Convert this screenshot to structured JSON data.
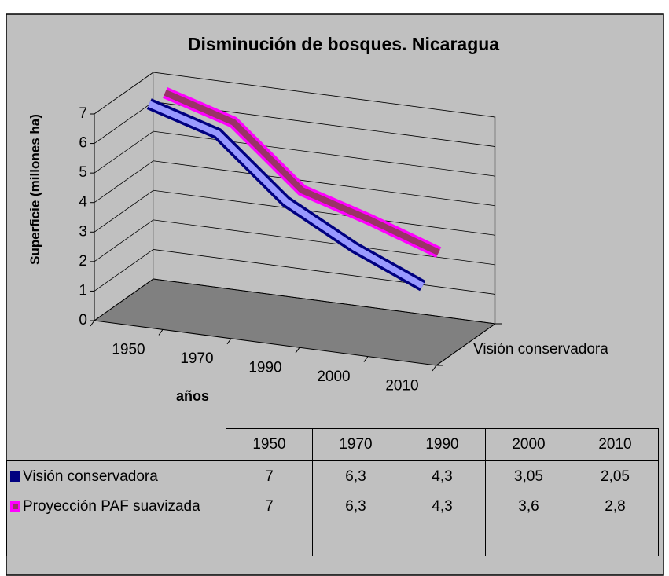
{
  "chart_data": {
    "type": "line3d",
    "title": "Disminución de bosques. Nicaragua",
    "x_label": "años",
    "y_label": "Superficie (millones ha)",
    "depth_label": "Visión conservadora",
    "categories": [
      "1950",
      "1970",
      "1990",
      "2000",
      "2010"
    ],
    "ylim": [
      0,
      7
    ],
    "yticks": [
      0,
      1,
      2,
      3,
      4,
      5,
      6,
      7
    ],
    "grid": true,
    "series": [
      {
        "name": "Visión conservadora",
        "color": "#9999ff",
        "edge_color": "#000080",
        "values": [
          7,
          6.3,
          4.3,
          3.05,
          2.05
        ],
        "value_labels": [
          "7",
          "6,3",
          "4,3",
          "3,05",
          "2,05"
        ]
      },
      {
        "name": "Proyección PAF suavizada",
        "color": "#993366",
        "edge_color": "#ff00ff",
        "values": [
          7,
          6.3,
          4.3,
          3.6,
          2.8
        ],
        "value_labels": [
          "7",
          "6,3",
          "4,3",
          "3,6",
          "2,8"
        ]
      }
    ]
  }
}
